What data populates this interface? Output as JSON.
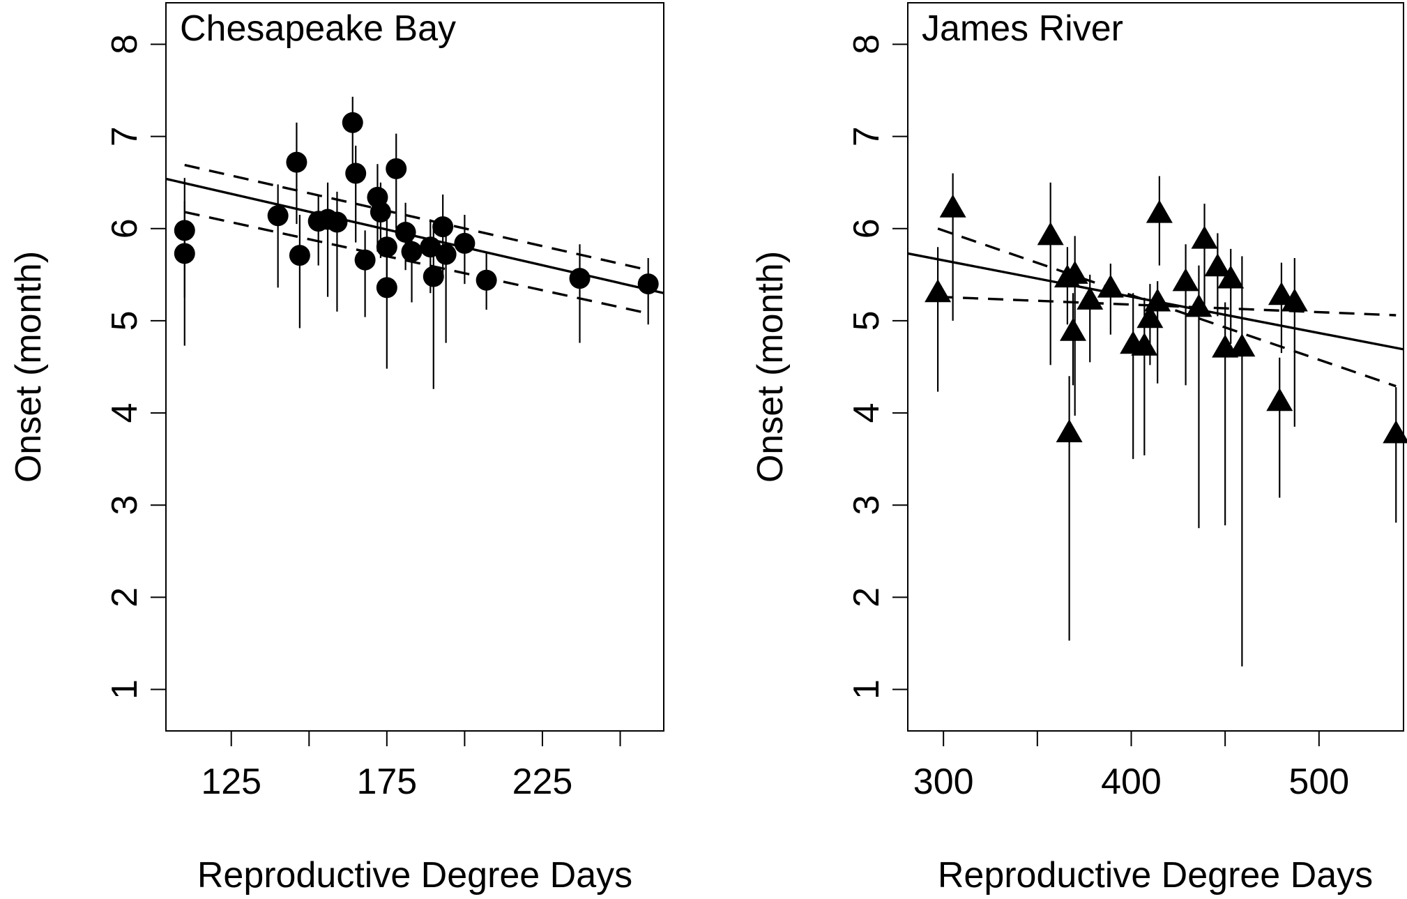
{
  "chart_data": [
    {
      "type": "scatter",
      "title": "Chesapeake Bay",
      "xlabel": "Reproductive Degree Days",
      "ylabel": "Onset (month)",
      "marker": "circle",
      "xlim": [
        104,
        264
      ],
      "ylim": [
        0.55,
        8.45
      ],
      "xticks": [
        125,
        150,
        175,
        200,
        225,
        250
      ],
      "xtick_labels": [
        "125",
        "",
        "175",
        "",
        "225",
        ""
      ],
      "yticks": [
        1,
        2,
        3,
        4,
        5,
        6,
        7,
        8
      ],
      "ytick_labels": [
        "1",
        "2",
        "3",
        "4",
        "5",
        "6",
        "7",
        "8"
      ],
      "points": [
        {
          "x": 110,
          "y": 5.98,
          "lo": 5.25,
          "hi": 6.55
        },
        {
          "x": 110,
          "y": 5.73,
          "lo": 4.73,
          "hi": 6.3
        },
        {
          "x": 140,
          "y": 6.14,
          "lo": 5.36,
          "hi": 6.48
        },
        {
          "x": 146,
          "y": 6.72,
          "lo": 6.05,
          "hi": 7.15
        },
        {
          "x": 147,
          "y": 5.71,
          "lo": 4.92,
          "hi": 6.15
        },
        {
          "x": 153,
          "y": 6.08,
          "lo": 5.6,
          "hi": 6.35
        },
        {
          "x": 156,
          "y": 6.1,
          "lo": 5.26,
          "hi": 6.5
        },
        {
          "x": 159,
          "y": 6.07,
          "lo": 5.1,
          "hi": 6.4
        },
        {
          "x": 164,
          "y": 7.15,
          "lo": 6.6,
          "hi": 7.43
        },
        {
          "x": 165,
          "y": 6.6,
          "lo": 5.85,
          "hi": 6.9
        },
        {
          "x": 168,
          "y": 5.66,
          "lo": 5.04,
          "hi": 5.98
        },
        {
          "x": 172,
          "y": 6.34,
          "lo": 5.75,
          "hi": 6.7
        },
        {
          "x": 173,
          "y": 6.18,
          "lo": 5.68,
          "hi": 6.5
        },
        {
          "x": 175,
          "y": 5.8,
          "lo": 5.3,
          "hi": 6.2
        },
        {
          "x": 175,
          "y": 5.36,
          "lo": 4.48,
          "hi": 5.8
        },
        {
          "x": 178,
          "y": 6.65,
          "lo": 6.0,
          "hi": 7.03
        },
        {
          "x": 181,
          "y": 5.96,
          "lo": 5.55,
          "hi": 6.28
        },
        {
          "x": 183,
          "y": 5.75,
          "lo": 5.2,
          "hi": 6.0
        },
        {
          "x": 189,
          "y": 5.8,
          "lo": 5.3,
          "hi": 6.1
        },
        {
          "x": 190,
          "y": 5.48,
          "lo": 4.26,
          "hi": 6.05
        },
        {
          "x": 193,
          "y": 6.02,
          "lo": 5.5,
          "hi": 6.37
        },
        {
          "x": 194,
          "y": 5.72,
          "lo": 4.76,
          "hi": 6.0
        },
        {
          "x": 200,
          "y": 5.84,
          "lo": 5.4,
          "hi": 6.15
        },
        {
          "x": 207,
          "y": 5.44,
          "lo": 5.12,
          "hi": 5.75
        },
        {
          "x": 237,
          "y": 5.46,
          "lo": 4.76,
          "hi": 5.83
        },
        {
          "x": 259,
          "y": 5.4,
          "lo": 4.96,
          "hi": 5.68
        }
      ],
      "fit_line": {
        "x": [
          104,
          264
        ],
        "y": [
          6.54,
          5.3
        ]
      },
      "ci_upper": {
        "x": [
          110,
          259
        ],
        "y": [
          6.69,
          5.55
        ]
      },
      "ci_lower": {
        "x": [
          110,
          259
        ],
        "y": [
          6.18,
          5.08
        ]
      }
    },
    {
      "type": "scatter",
      "title": "James River",
      "xlabel": "Reproductive Degree Days",
      "ylabel": "Onset (month)",
      "marker": "triangle",
      "xlim": [
        281,
        545
      ],
      "ylim": [
        0.55,
        8.45
      ],
      "xticks": [
        300,
        350,
        400,
        450,
        500
      ],
      "xtick_labels": [
        "300",
        "",
        "400",
        "",
        "500"
      ],
      "yticks": [
        1,
        2,
        3,
        4,
        5,
        6,
        7,
        8
      ],
      "ytick_labels": [
        "1",
        "2",
        "3",
        "4",
        "5",
        "6",
        "7",
        "8"
      ],
      "points": [
        {
          "x": 297,
          "y": 5.3,
          "lo": 4.23,
          "hi": 5.8
        },
        {
          "x": 305,
          "y": 6.22,
          "lo": 5.0,
          "hi": 6.6
        },
        {
          "x": 357,
          "y": 5.92,
          "lo": 4.52,
          "hi": 6.5
        },
        {
          "x": 366,
          "y": 5.46,
          "lo": 4.96,
          "hi": 5.8
        },
        {
          "x": 367,
          "y": 3.78,
          "lo": 1.53,
          "hi": 4.4
        },
        {
          "x": 369,
          "y": 4.88,
          "lo": 4.3,
          "hi": 5.3
        },
        {
          "x": 370,
          "y": 5.5,
          "lo": 3.97,
          "hi": 5.92
        },
        {
          "x": 378,
          "y": 5.22,
          "lo": 4.55,
          "hi": 5.5
        },
        {
          "x": 389,
          "y": 5.35,
          "lo": 4.85,
          "hi": 5.62
        },
        {
          "x": 401,
          "y": 4.74,
          "lo": 3.5,
          "hi": 5.3
        },
        {
          "x": 407,
          "y": 4.72,
          "lo": 3.54,
          "hi": 5.25
        },
        {
          "x": 410,
          "y": 5.02,
          "lo": 4.52,
          "hi": 5.4
        },
        {
          "x": 414,
          "y": 5.2,
          "lo": 4.32,
          "hi": 5.43
        },
        {
          "x": 415,
          "y": 6.16,
          "lo": 5.6,
          "hi": 6.57
        },
        {
          "x": 429,
          "y": 5.42,
          "lo": 4.3,
          "hi": 5.83
        },
        {
          "x": 436,
          "y": 5.14,
          "lo": 2.75,
          "hi": 5.6
        },
        {
          "x": 439,
          "y": 5.88,
          "lo": 5.15,
          "hi": 6.27
        },
        {
          "x": 446,
          "y": 5.58,
          "lo": 5.05,
          "hi": 5.95
        },
        {
          "x": 450,
          "y": 4.7,
          "lo": 2.78,
          "hi": 5.2
        },
        {
          "x": 453,
          "y": 5.45,
          "lo": 4.75,
          "hi": 5.78
        },
        {
          "x": 459,
          "y": 4.71,
          "lo": 1.25,
          "hi": 5.7
        },
        {
          "x": 479,
          "y": 4.12,
          "lo": 3.08,
          "hi": 4.6
        },
        {
          "x": 480,
          "y": 5.27,
          "lo": 4.65,
          "hi": 5.63
        },
        {
          "x": 487,
          "y": 5.2,
          "lo": 3.85,
          "hi": 5.68
        },
        {
          "x": 541,
          "y": 3.77,
          "lo": 2.81,
          "hi": 4.28
        }
      ],
      "fit_line": {
        "x": [
          281,
          545
        ],
        "y": [
          5.73,
          4.69
        ]
      },
      "ci_upper": {
        "x": [
          297,
          541
        ],
        "y": [
          6.0,
          4.29
        ]
      },
      "ci_lower": {
        "x": [
          297,
          541
        ],
        "y": [
          5.26,
          5.06
        ]
      }
    }
  ]
}
